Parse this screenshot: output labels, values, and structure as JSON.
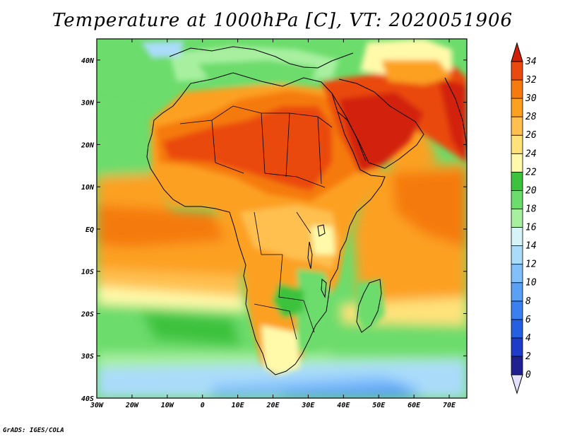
{
  "title": "Temperature at 1000hPa [C], VT: 2020051906",
  "credit": "GrADS: IGES/COLA",
  "map": {
    "variable": "Temperature",
    "level": "1000hPa",
    "units": "C",
    "valid_time": "2020051906",
    "lon_range": [
      -30,
      75
    ],
    "lat_range": [
      -40,
      45
    ],
    "x_ticks": [
      {
        "value": -30,
        "label": "30W"
      },
      {
        "value": -20,
        "label": "20W"
      },
      {
        "value": -10,
        "label": "10W"
      },
      {
        "value": 0,
        "label": "0"
      },
      {
        "value": 10,
        "label": "10E"
      },
      {
        "value": 20,
        "label": "20E"
      },
      {
        "value": 30,
        "label": "30E"
      },
      {
        "value": 40,
        "label": "40E"
      },
      {
        "value": 50,
        "label": "50E"
      },
      {
        "value": 60,
        "label": "60E"
      },
      {
        "value": 70,
        "label": "70E"
      }
    ],
    "y_ticks": [
      {
        "value": 40,
        "label": "40N"
      },
      {
        "value": 30,
        "label": "30N"
      },
      {
        "value": 20,
        "label": "20N"
      },
      {
        "value": 10,
        "label": "10N"
      },
      {
        "value": 0,
        "label": "EQ"
      },
      {
        "value": -10,
        "label": "10S"
      },
      {
        "value": -20,
        "label": "20S"
      },
      {
        "value": -30,
        "label": "30S"
      },
      {
        "value": -40,
        "label": "40S"
      }
    ]
  },
  "colorbar": {
    "levels": [
      0,
      2,
      4,
      6,
      8,
      10,
      12,
      14,
      16,
      18,
      20,
      22,
      24,
      26,
      28,
      30,
      32,
      34
    ],
    "colors": [
      "#202090",
      "#1e3cc8",
      "#2560e0",
      "#3a80f0",
      "#5aa0f5",
      "#82c0fa",
      "#aadcfa",
      "#d6f4f8",
      "#a8f0a0",
      "#6cdc6c",
      "#3cc23c",
      "#fffaaa",
      "#ffe27a",
      "#ffc050",
      "#fca020",
      "#f57a10",
      "#ea4a10",
      "#d22008"
    ],
    "low_color": "#e2e2fc",
    "high_color": "#d22008"
  }
}
